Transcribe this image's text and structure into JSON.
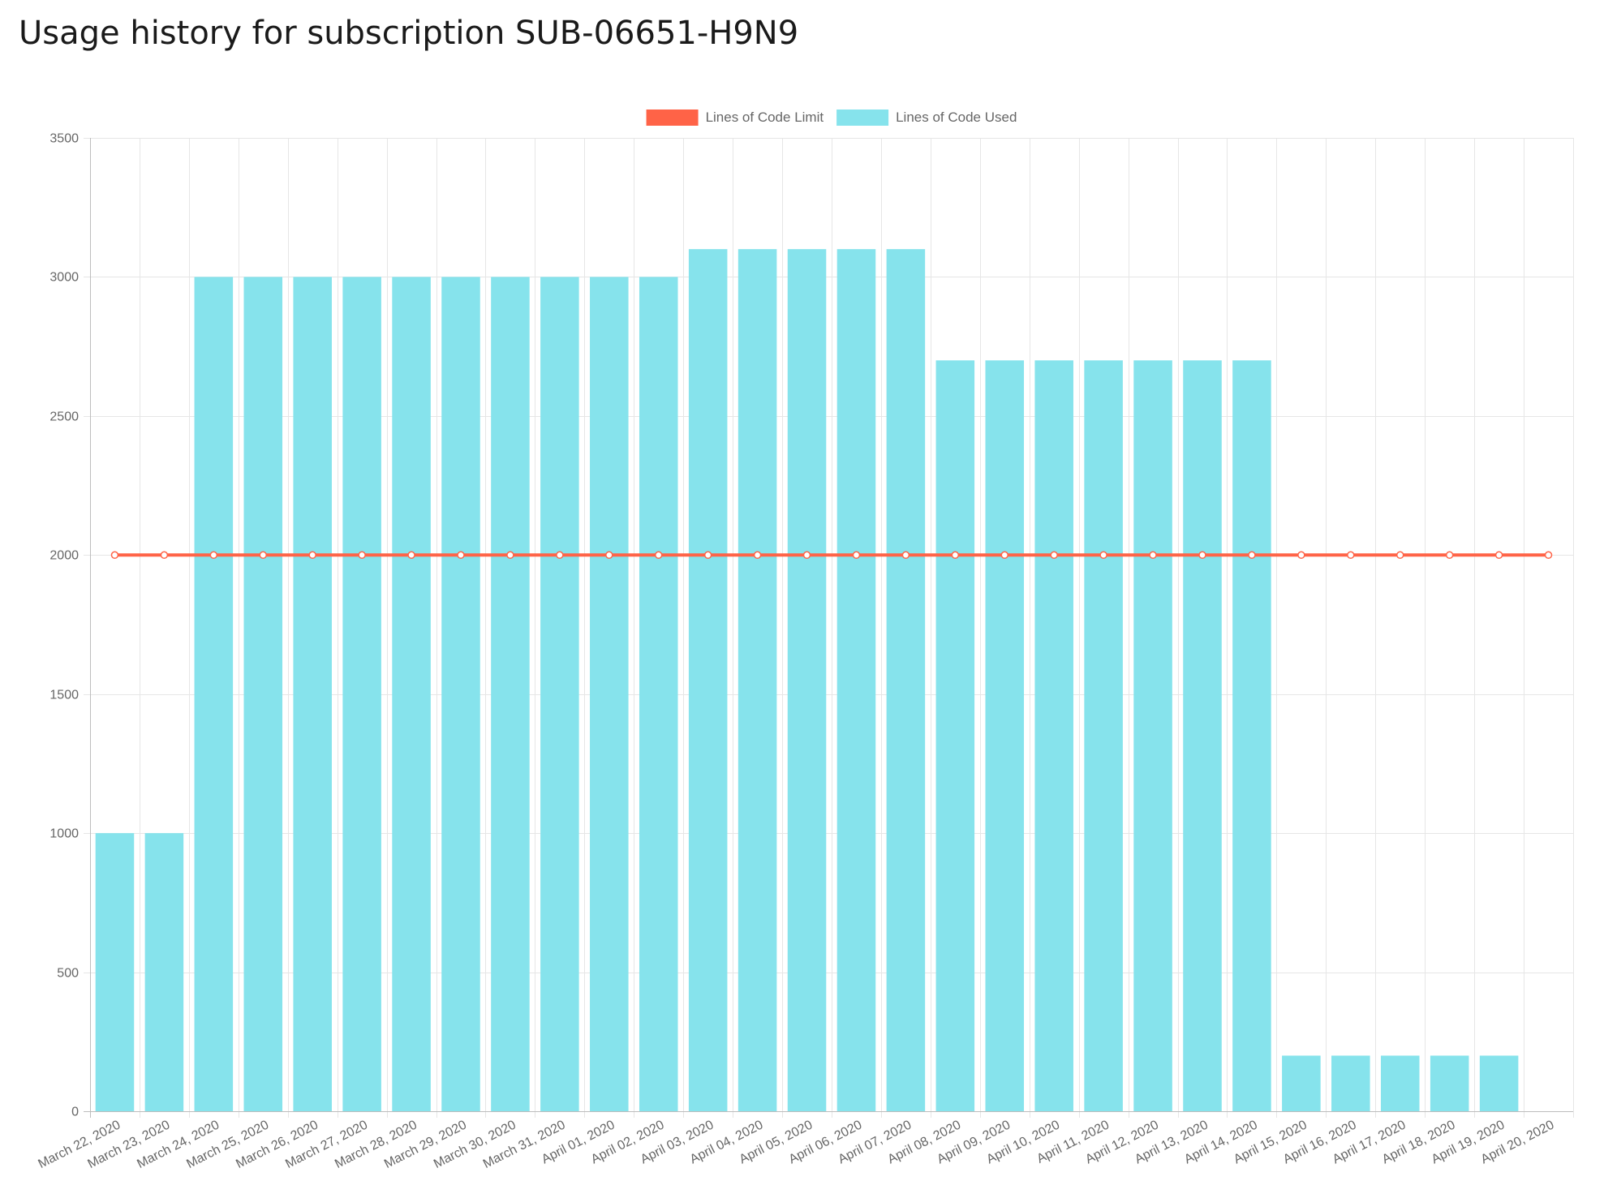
{
  "page": {
    "title": "Usage history for subscription SUB-06651-H9N9"
  },
  "chart_data": {
    "type": "bar",
    "title": "",
    "xlabel": "",
    "ylabel": "",
    "ylim": [
      0,
      3500
    ],
    "yticks": [
      0,
      500,
      1000,
      1500,
      2000,
      2500,
      3000,
      3500
    ],
    "grid": true,
    "legend_position": "top-center",
    "categories": [
      "March 22, 2020",
      "March 23, 2020",
      "March 24, 2020",
      "March 25, 2020",
      "March 26, 2020",
      "March 27, 2020",
      "March 28, 2020",
      "March 29, 2020",
      "March 30, 2020",
      "March 31, 2020",
      "April 01, 2020",
      "April 02, 2020",
      "April 03, 2020",
      "April 04, 2020",
      "April 05, 2020",
      "April 06, 2020",
      "April 07, 2020",
      "April 08, 2020",
      "April 09, 2020",
      "April 10, 2020",
      "April 11, 2020",
      "April 12, 2020",
      "April 13, 2020",
      "April 14, 2020",
      "April 15, 2020",
      "April 16, 2020",
      "April 17, 2020",
      "April 18, 2020",
      "April 19, 2020",
      "April 20, 2020"
    ],
    "series": [
      {
        "name": "Lines of Code Limit",
        "type": "line",
        "color": "#ff6347",
        "values": [
          2000,
          2000,
          2000,
          2000,
          2000,
          2000,
          2000,
          2000,
          2000,
          2000,
          2000,
          2000,
          2000,
          2000,
          2000,
          2000,
          2000,
          2000,
          2000,
          2000,
          2000,
          2000,
          2000,
          2000,
          2000,
          2000,
          2000,
          2000,
          2000,
          2000
        ]
      },
      {
        "name": "Lines of Code Used",
        "type": "bar",
        "color": "#86e3ec",
        "values": [
          1000,
          1000,
          3000,
          3000,
          3000,
          3000,
          3000,
          3000,
          3000,
          3000,
          3000,
          3000,
          3100,
          3100,
          3100,
          3100,
          3100,
          2700,
          2700,
          2700,
          2700,
          2700,
          2700,
          2700,
          200,
          200,
          200,
          200,
          200,
          0
        ]
      }
    ]
  }
}
